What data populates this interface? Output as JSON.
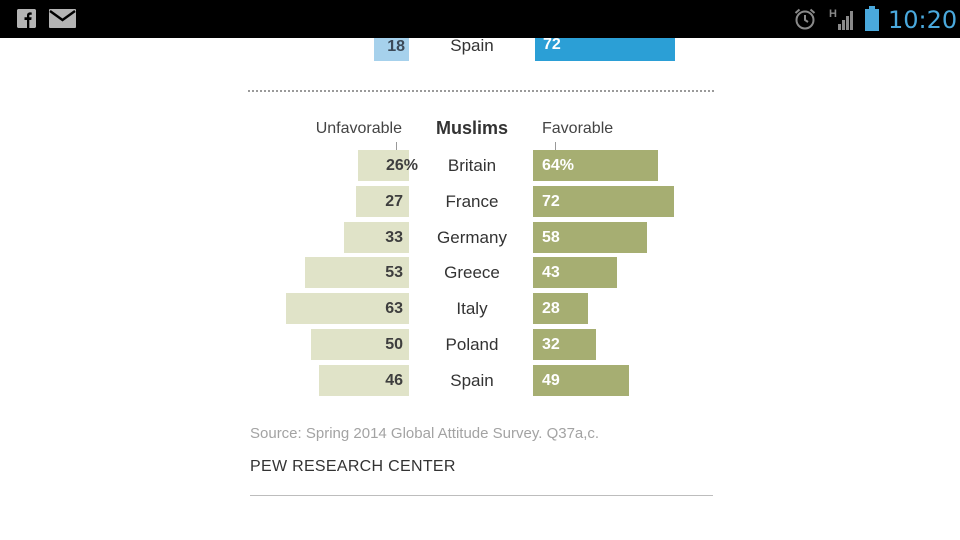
{
  "status_bar": {
    "time": "10:20",
    "icons": [
      "facebook-icon",
      "mail-icon",
      "alarm-icon",
      "signal-icon",
      "battery-icon"
    ],
    "network_label": "H"
  },
  "previous_chart_row": {
    "country": "Spain",
    "unfavorable": "18",
    "favorable": "72"
  },
  "colors": {
    "unfavorable_bar": "#e0e3c8",
    "favorable_bar": "#a6ae72",
    "prev_unfavorable_bar": "#a6d1ec",
    "prev_favorable_bar": "#2b9fd6",
    "clock": "#4aa9dd"
  },
  "chart_data": {
    "type": "bar",
    "title": "Muslims",
    "left_label": "Unfavorable",
    "right_label": "Favorable",
    "categories": [
      "Britain",
      "France",
      "Germany",
      "Greece",
      "Italy",
      "Poland",
      "Spain"
    ],
    "series": [
      {
        "name": "Unfavorable",
        "values": [
          26,
          27,
          33,
          53,
          63,
          50,
          46
        ],
        "labels": [
          "26%",
          "27",
          "33",
          "53",
          "63",
          "50",
          "46"
        ]
      },
      {
        "name": "Favorable",
        "values": [
          64,
          72,
          58,
          43,
          28,
          32,
          49
        ],
        "labels": [
          "64%",
          "72",
          "58",
          "43",
          "28",
          "32",
          "49"
        ]
      }
    ]
  },
  "footer": {
    "source": "Source: Spring 2014 Global Attitude Survey. Q37a,c.",
    "organization": "PEW RESEARCH CENTER"
  }
}
